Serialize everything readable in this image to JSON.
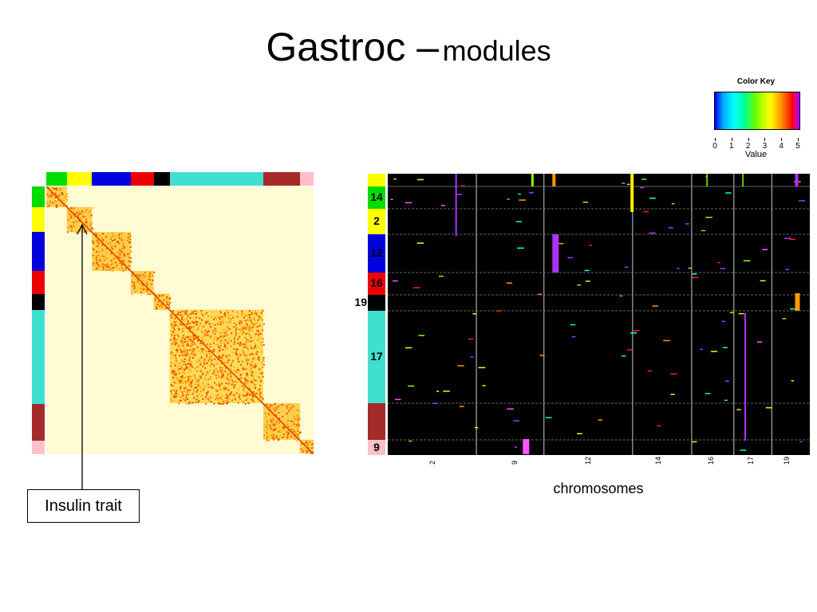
{
  "title": {
    "main": "Gastroc –",
    "sub": "modules"
  },
  "color_key": {
    "title": "Color Key",
    "ticks": [
      "0",
      "1",
      "2",
      "3",
      "4",
      "5"
    ],
    "xlabel": "Value"
  },
  "heatmap": {
    "module_colors": [
      "#00dd00",
      "#ffff00",
      "#0000dd",
      "#ee0000",
      "#000000",
      "#40e0d0",
      "#a52a2a",
      "#ffc0cb"
    ],
    "module_weights": [
      9,
      11,
      17,
      10,
      7,
      41,
      16,
      6
    ],
    "cell_background": "#fffbd2"
  },
  "annotation": {
    "label": "Insulin trait"
  },
  "right_plot": {
    "module_rows": [
      {
        "color": "#ffff00",
        "label": ""
      },
      {
        "color": "#00dd00",
        "label": "14"
      },
      {
        "color": "#ffff00",
        "label": "2"
      },
      {
        "color": "#0000dd",
        "label": "12"
      },
      {
        "color": "#ee0000",
        "label": "16"
      },
      {
        "color": "#000000",
        "label": "19"
      },
      {
        "color": "#40e0d0",
        "label": "17"
      },
      {
        "color": "#a52a2a",
        "label": ""
      },
      {
        "color": "#ffc0cb",
        "label": "9"
      }
    ],
    "row_weights": [
      16,
      28,
      32,
      48,
      28,
      20,
      116,
      46,
      19
    ],
    "x_ticks": [
      "2",
      "9",
      "12",
      "14",
      "16",
      "17",
      "19"
    ],
    "x_label": "chromosomes"
  }
}
